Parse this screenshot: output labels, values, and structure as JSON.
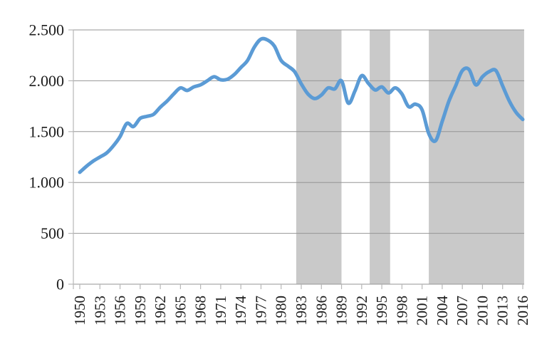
{
  "chart_data": {
    "type": "line",
    "title": "",
    "xlabel": "",
    "ylabel": "",
    "grid": true,
    "legend": false,
    "x_start": 1950,
    "x_step": 1,
    "series": [
      {
        "name": "main-series",
        "color": "#5B9BD5",
        "values": [
          1100,
          1160,
          1210,
          1250,
          1290,
          1360,
          1450,
          1580,
          1550,
          1630,
          1650,
          1670,
          1740,
          1800,
          1870,
          1930,
          1905,
          1940,
          1960,
          2000,
          2040,
          2010,
          2015,
          2060,
          2130,
          2200,
          2330,
          2410,
          2400,
          2340,
          2200,
          2145,
          2090,
          1970,
          1870,
          1825,
          1860,
          1930,
          1920,
          2000,
          1780,
          1900,
          2050,
          1975,
          1910,
          1940,
          1880,
          1930,
          1870,
          1745,
          1770,
          1715,
          1480,
          1410,
          1600,
          1800,
          1950,
          2100,
          2110,
          1960,
          2040,
          2090,
          2100,
          1950,
          1800,
          1690,
          1620
        ]
      }
    ],
    "x_ticks": [
      {
        "year": 1950,
        "label": "1950"
      },
      {
        "year": 1953,
        "label": "1953"
      },
      {
        "year": 1956,
        "label": "1956"
      },
      {
        "year": 1959,
        "label": "1959"
      },
      {
        "year": 1962,
        "label": "1962"
      },
      {
        "year": 1965,
        "label": "1965"
      },
      {
        "year": 1968,
        "label": "1968"
      },
      {
        "year": 1971,
        "label": "1971"
      },
      {
        "year": 1974,
        "label": "1974"
      },
      {
        "year": 1977,
        "label": "1977"
      },
      {
        "year": 1980,
        "label": "1980"
      },
      {
        "year": 1983,
        "label": "1983"
      },
      {
        "year": 1986,
        "label": "1986"
      },
      {
        "year": 1989,
        "label": "1989"
      },
      {
        "year": 1992,
        "label": "1992"
      },
      {
        "year": 1995,
        "label": "1995"
      },
      {
        "year": 1998,
        "label": "1998"
      },
      {
        "year": 2001,
        "label": "2001"
      },
      {
        "year": 2004,
        "label": "2004"
      },
      {
        "year": 2007,
        "label": "2007"
      },
      {
        "year": 2010,
        "label": "2010"
      },
      {
        "year": 2013,
        "label": "2013"
      },
      {
        "year": 2016,
        "label": "2016"
      }
    ],
    "y_ticks": [
      {
        "value": 0,
        "label": "0"
      },
      {
        "value": 500,
        "label": "500"
      },
      {
        "value": 1000,
        "label": "1.000"
      },
      {
        "value": 1500,
        "label": "1.500"
      },
      {
        "value": 2000,
        "label": "2.000"
      },
      {
        "value": 2500,
        "label": "2.500"
      }
    ],
    "ylim": [
      0,
      2500
    ],
    "xlim": [
      1950,
      2016
    ],
    "shaded_bands": [
      {
        "from": 1982.25,
        "to": 1989.0
      },
      {
        "from": 1993.2,
        "to": 1996.25
      },
      {
        "from": 2002.0,
        "to": 2016.2
      }
    ],
    "colors": {
      "line": "#5B9BD5",
      "band": "#C9C9C9",
      "gridline": "#969696",
      "axis": "#B7B7B7",
      "text": "#1c1c1c",
      "background": "#ffffff"
    }
  }
}
